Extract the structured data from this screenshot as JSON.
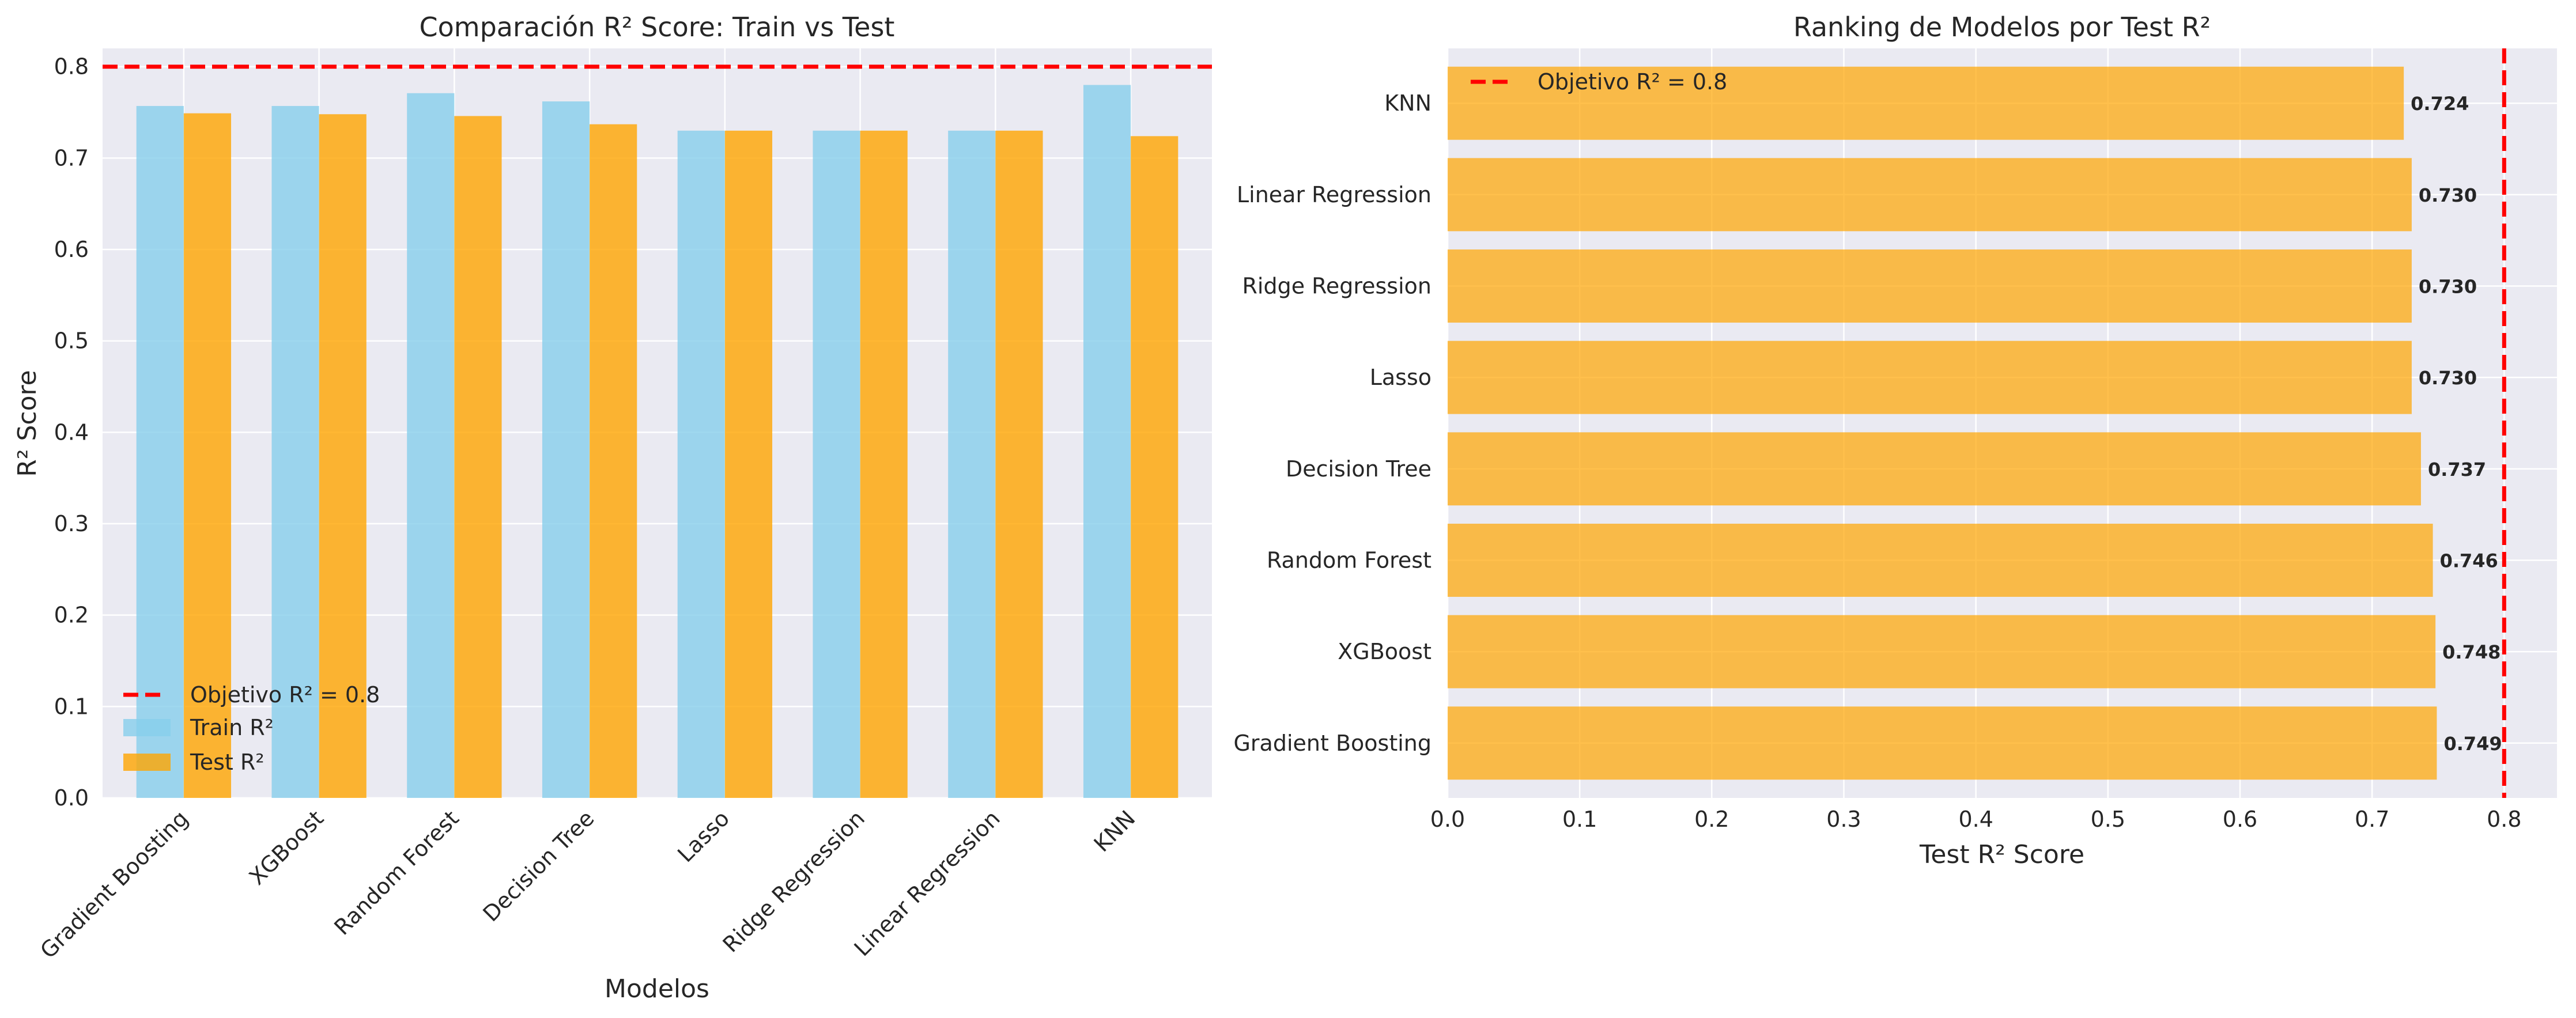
{
  "chart_data": [
    {
      "type": "bar",
      "title": "Comparación R² Score: Train vs Test",
      "xlabel": "Modelos",
      "ylabel": "R² Score",
      "ylim": [
        0,
        0.82
      ],
      "yticks": [
        "0.0",
        "0.1",
        "0.2",
        "0.3",
        "0.4",
        "0.5",
        "0.6",
        "0.7",
        "0.8"
      ],
      "categories": [
        "Gradient Boosting",
        "XGBoost",
        "Random Forest",
        "Decision Tree",
        "Lasso",
        "Ridge Regression",
        "Linear Regression",
        "KNN"
      ],
      "series": [
        {
          "name": "Train R²",
          "color": "#87CEEB",
          "values": [
            0.757,
            0.757,
            0.771,
            0.762,
            0.73,
            0.73,
            0.73,
            0.78
          ]
        },
        {
          "name": "Test R²",
          "color": "#FFA500",
          "values": [
            0.749,
            0.748,
            0.746,
            0.737,
            0.73,
            0.73,
            0.73,
            0.724
          ]
        }
      ],
      "reference_line": {
        "value": 0.8,
        "label": "Objetivo R² = 0.8",
        "color": "#FF0000"
      },
      "legend_position": "lower-left",
      "grid": true
    },
    {
      "type": "bar",
      "orientation": "horizontal",
      "title": "Ranking de Modelos por Test R²",
      "xlabel": "Test R² Score",
      "ylabel": "",
      "xlim": [
        0,
        0.84
      ],
      "xticks": [
        "0.0",
        "0.1",
        "0.2",
        "0.3",
        "0.4",
        "0.5",
        "0.6",
        "0.7",
        "0.8"
      ],
      "categories": [
        "Gradient Boosting",
        "XGBoost",
        "Random Forest",
        "Decision Tree",
        "Lasso",
        "Ridge Regression",
        "Linear Regression",
        "KNN"
      ],
      "values": [
        0.749,
        0.748,
        0.746,
        0.737,
        0.73,
        0.73,
        0.73,
        0.724
      ],
      "value_labels": [
        "0.749",
        "0.748",
        "0.746",
        "0.737",
        "0.730",
        "0.730",
        "0.730",
        "0.724"
      ],
      "color": "#FFA500",
      "reference_line": {
        "value": 0.8,
        "label": "Objetivo R² = 0.8",
        "color": "#FF0000"
      },
      "legend_position": "top-left",
      "grid": true
    }
  ]
}
